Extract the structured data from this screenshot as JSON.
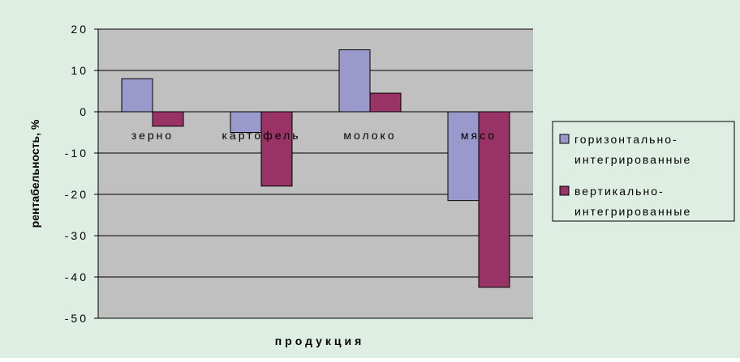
{
  "chart_data": {
    "type": "bar",
    "categories": [
      "зерно",
      "картофель",
      "молоко",
      "мясо"
    ],
    "series": [
      {
        "name": "горизонтально-интегрированные",
        "values": [
          8,
          -5,
          15,
          -21.5
        ],
        "color": "#9999cc"
      },
      {
        "name": "вертикально-интегрированные",
        "values": [
          -3.5,
          -18,
          4.5,
          -42.5
        ],
        "color": "#993366"
      }
    ],
    "xlabel": "продукция",
    "ylabel": "рентабельность, %",
    "ylim": [
      -50,
      20
    ],
    "yticks": [
      "20",
      "10",
      "0",
      "-10",
      "-20",
      "-30",
      "-40",
      "-50"
    ],
    "legend_labels": [
      [
        "горизонтально-",
        "интегрированные"
      ],
      [
        "вертикально-",
        "интегрированные"
      ]
    ],
    "legend_position": "right",
    "grid": true,
    "colors": {
      "chart_background": "#dfeee3",
      "plot_background": "#c0c0c0",
      "gridline": "#000000"
    }
  }
}
